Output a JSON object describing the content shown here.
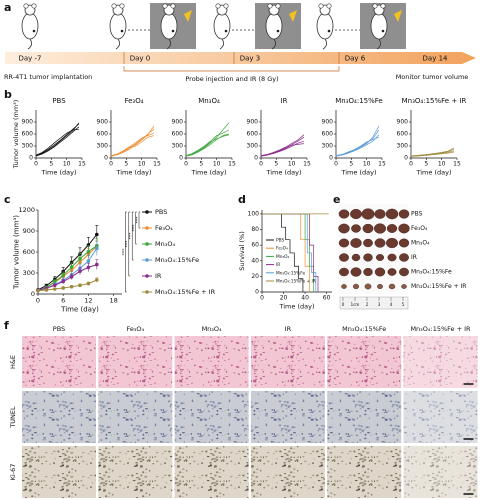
{
  "panel_labels": [
    "a",
    "b",
    "c",
    "d",
    "e",
    "f"
  ],
  "schematic": {
    "days": [
      "Day -7",
      "Day 0",
      "Day 3",
      "Day 6",
      "Day 14"
    ],
    "implantation": "RR-4T1 tumor implantation",
    "treatment": "Probe injection and IR (8 Gy)",
    "monitor": "Monitor tumor volume"
  },
  "chart_data": [
    {
      "type": "line",
      "title": "PBS",
      "x": [
        0,
        2,
        4,
        6,
        8,
        10,
        12,
        14
      ],
      "xlim": [
        0,
        15
      ],
      "xticks": [
        0,
        5,
        10,
        15
      ],
      "ylim": [
        0,
        1200
      ],
      "yticks": [
        0,
        300,
        600,
        900
      ],
      "xlabel": "Time (day)",
      "ylabel": "Tumor volume (mm³)",
      "series": [
        {
          "color": "#111111",
          "values": [
            60,
            120,
            220,
            330,
            450,
            580,
            720,
            850
          ]
        },
        {
          "color": "#111111",
          "values": [
            50,
            100,
            180,
            280,
            400,
            520,
            650,
            780
          ]
        },
        {
          "color": "#111111",
          "values": [
            70,
            140,
            250,
            380,
            500,
            620,
            700,
            720
          ]
        },
        {
          "color": "#111111",
          "values": [
            55,
            110,
            200,
            300,
            430,
            560,
            680,
            880
          ]
        }
      ]
    },
    {
      "type": "line",
      "title": "Fe₃O₄",
      "x": [
        0,
        2,
        4,
        6,
        8,
        10,
        12,
        14
      ],
      "xlim": [
        0,
        15
      ],
      "xticks": [
        0,
        5,
        10,
        15
      ],
      "ylim": [
        0,
        1200
      ],
      "yticks": [
        0,
        300,
        600,
        900
      ],
      "xlabel": "Time (day)",
      "series": [
        {
          "color": "#f08c2c",
          "values": [
            50,
            90,
            160,
            250,
            350,
            470,
            600,
            720
          ]
        },
        {
          "color": "#f08c2c",
          "values": [
            60,
            100,
            180,
            280,
            380,
            500,
            560,
            620
          ]
        },
        {
          "color": "#f08c2c",
          "values": [
            45,
            80,
            140,
            220,
            330,
            450,
            580,
            800
          ]
        },
        {
          "color": "#f08c2c",
          "values": [
            55,
            95,
            170,
            260,
            300,
            400,
            520,
            560
          ]
        }
      ]
    },
    {
      "type": "line",
      "title": "Mn₃O₄",
      "x": [
        0,
        2,
        4,
        6,
        8,
        10,
        12,
        14
      ],
      "xlim": [
        0,
        15
      ],
      "xticks": [
        0,
        5,
        10,
        15
      ],
      "ylim": [
        0,
        1200
      ],
      "yticks": [
        0,
        300,
        600,
        900
      ],
      "xlabel": "Time (day)",
      "series": [
        {
          "color": "#3aa63a",
          "values": [
            50,
            90,
            170,
            260,
            380,
            520,
            700,
            880
          ]
        },
        {
          "color": "#3aa63a",
          "values": [
            60,
            110,
            200,
            300,
            420,
            560,
            620,
            700
          ]
        },
        {
          "color": "#3aa63a",
          "values": [
            45,
            80,
            150,
            240,
            340,
            460,
            560,
            600
          ]
        },
        {
          "color": "#3aa63a",
          "values": [
            55,
            100,
            180,
            280,
            400,
            480,
            540,
            580
          ]
        }
      ]
    },
    {
      "type": "line",
      "title": "IR",
      "x": [
        0,
        2,
        4,
        6,
        8,
        10,
        12,
        14
      ],
      "xlim": [
        0,
        15
      ],
      "xticks": [
        0,
        5,
        10,
        15
      ],
      "ylim": [
        0,
        1200
      ],
      "yticks": [
        0,
        300,
        600,
        900
      ],
      "xlabel": "Time (day)",
      "series": [
        {
          "color": "#8b2b8b",
          "values": [
            50,
            80,
            130,
            180,
            250,
            330,
            420,
            520
          ]
        },
        {
          "color": "#8b2b8b",
          "values": [
            60,
            90,
            140,
            200,
            270,
            360,
            450,
            580
          ]
        },
        {
          "color": "#8b2b8b",
          "values": [
            45,
            70,
            110,
            160,
            220,
            290,
            370,
            420
          ]
        },
        {
          "color": "#8b2b8b",
          "values": [
            55,
            85,
            120,
            170,
            240,
            320,
            340,
            360
          ]
        }
      ]
    },
    {
      "type": "line",
      "title": "Mn₃O₄:15%Fe",
      "x": [
        0,
        2,
        4,
        6,
        8,
        10,
        12,
        14
      ],
      "xlim": [
        0,
        15
      ],
      "xticks": [
        0,
        5,
        10,
        15
      ],
      "ylim": [
        0,
        1200
      ],
      "yticks": [
        0,
        300,
        600,
        900
      ],
      "xlabel": "Time (day)",
      "series": [
        {
          "color": "#5b9bd5",
          "values": [
            50,
            80,
            130,
            190,
            270,
            360,
            520,
            800
          ]
        },
        {
          "color": "#5b9bd5",
          "values": [
            55,
            85,
            140,
            200,
            280,
            380,
            480,
            700
          ]
        },
        {
          "color": "#5b9bd5",
          "values": [
            45,
            75,
            120,
            180,
            250,
            330,
            420,
            580
          ]
        },
        {
          "color": "#5b9bd5",
          "values": [
            60,
            90,
            150,
            210,
            300,
            400,
            460,
            520
          ]
        }
      ]
    },
    {
      "type": "line",
      "title": "Mn₃O₄:15%Fe + IR",
      "x": [
        0,
        2,
        4,
        6,
        8,
        10,
        12,
        14
      ],
      "xlim": [
        0,
        15
      ],
      "xticks": [
        0,
        5,
        10,
        15
      ],
      "ylim": [
        0,
        1200
      ],
      "yticks": [
        0,
        300,
        600,
        900
      ],
      "xlabel": "Time (day)",
      "series": [
        {
          "color": "#a08a3c",
          "values": [
            50,
            60,
            75,
            90,
            110,
            130,
            160,
            220
          ]
        },
        {
          "color": "#a08a3c",
          "values": [
            45,
            55,
            70,
            85,
            100,
            120,
            140,
            180
          ]
        },
        {
          "color": "#a08a3c",
          "values": [
            55,
            65,
            80,
            95,
            115,
            140,
            170,
            250
          ]
        },
        {
          "color": "#a08a3c",
          "values": [
            40,
            50,
            60,
            75,
            90,
            105,
            120,
            150
          ]
        }
      ]
    },
    {
      "type": "line",
      "error_bars": true,
      "legend": "right",
      "x": [
        0,
        2,
        4,
        6,
        8,
        10,
        12,
        14
      ],
      "xlim": [
        0,
        20
      ],
      "xticks": [
        0,
        6,
        12,
        18
      ],
      "ylim": [
        0,
        1200
      ],
      "yticks": [
        0,
        300,
        600,
        900,
        1200
      ],
      "xlabel": "Time (day)",
      "ylabel": "Tumor volume (mm³)",
      "series": [
        {
          "name": "PBS",
          "color": "#111111",
          "values": [
            60,
            120,
            210,
            320,
            450,
            570,
            700,
            850
          ],
          "errors": [
            10,
            20,
            40,
            60,
            80,
            90,
            110,
            130
          ]
        },
        {
          "name": "Fe₃O₄",
          "color": "#f08c2c",
          "values": [
            50,
            95,
            165,
            250,
            340,
            455,
            565,
            680
          ],
          "errors": [
            8,
            15,
            30,
            45,
            60,
            70,
            80,
            90
          ]
        },
        {
          "name": "Mn₃O₄",
          "color": "#3aa63a",
          "values": [
            52,
            95,
            175,
            270,
            385,
            505,
            605,
            690
          ],
          "errors": [
            8,
            15,
            30,
            45,
            60,
            75,
            85,
            100
          ]
        },
        {
          "name": "Mn₃O₄:15%Fe",
          "color": "#5b9bd5",
          "values": [
            52,
            82,
            135,
            195,
            275,
            368,
            470,
            650
          ],
          "errors": [
            8,
            12,
            25,
            35,
            45,
            60,
            80,
            100
          ]
        },
        {
          "name": "IR",
          "color": "#8b2b8b",
          "values": [
            52,
            81,
            125,
            178,
            245,
            325,
            380,
            420
          ],
          "errors": [
            8,
            12,
            20,
            30,
            40,
            50,
            60,
            70
          ]
        },
        {
          "name": "Mn₃O₄:15%Fe + IR",
          "color": "#a08a3c",
          "values": [
            48,
            57,
            71,
            86,
            104,
            124,
            148,
            200
          ],
          "errors": [
            6,
            8,
            10,
            12,
            15,
            18,
            22,
            30
          ]
        }
      ],
      "annotations": [
        "***",
        "***",
        "***",
        "***",
        "***"
      ]
    },
    {
      "type": "step",
      "legend": "lower left",
      "xlim": [
        0,
        65
      ],
      "xticks": [
        0,
        20,
        40,
        60
      ],
      "ylim": [
        0,
        105
      ],
      "yticks": [
        0,
        20,
        40,
        60,
        80,
        100
      ],
      "xlabel": "Time (day)",
      "ylabel": "Survival (%)",
      "series": [
        {
          "name": "PBS",
          "color": "#111111",
          "x": [
            0,
            18,
            22,
            26,
            30,
            34,
            38
          ],
          "values": [
            100,
            83,
            67,
            50,
            33,
            17,
            0
          ]
        },
        {
          "name": "Fe₃O₄",
          "color": "#f08c2c",
          "x": [
            0,
            36,
            40,
            44
          ],
          "values": [
            100,
            67,
            33,
            0
          ]
        },
        {
          "name": "Mn₃O₄",
          "color": "#3aa63a",
          "x": [
            0,
            40,
            44,
            48
          ],
          "values": [
            100,
            67,
            33,
            0
          ]
        },
        {
          "name": "IR",
          "color": "#8b2b8b",
          "x": [
            0,
            44,
            48,
            52
          ],
          "values": [
            100,
            60,
            20,
            0
          ]
        },
        {
          "name": "Mn₃O₄:15%Fe",
          "color": "#5b9bd5",
          "x": [
            0,
            42,
            46,
            50
          ],
          "values": [
            100,
            50,
            25,
            0
          ]
        },
        {
          "name": "Mn₃O₄:15%Fe + IR",
          "color": "#a08a3c",
          "x": [
            0,
            62
          ],
          "values": [
            100,
            100
          ]
        }
      ]
    }
  ],
  "tumor_photos": {
    "labels": [
      "PBS",
      "Fe₃O₄",
      "Mn₃O₄",
      "IR",
      "Mn₃O₄:15%Fe",
      "Mn₃O₄:15%Fe + IR"
    ],
    "ruler": [
      "0",
      "1cm",
      "2",
      "3",
      "4",
      "5"
    ]
  },
  "histology": {
    "columns": [
      "PBS",
      "Fe₃O₄",
      "Mn₃O₄",
      "IR",
      "Mn₃O₄:15%Fe",
      "Mn₃O₄:15%Fe + IR"
    ],
    "rows": [
      "H&E",
      "TUNEL",
      "Ki-67"
    ]
  }
}
